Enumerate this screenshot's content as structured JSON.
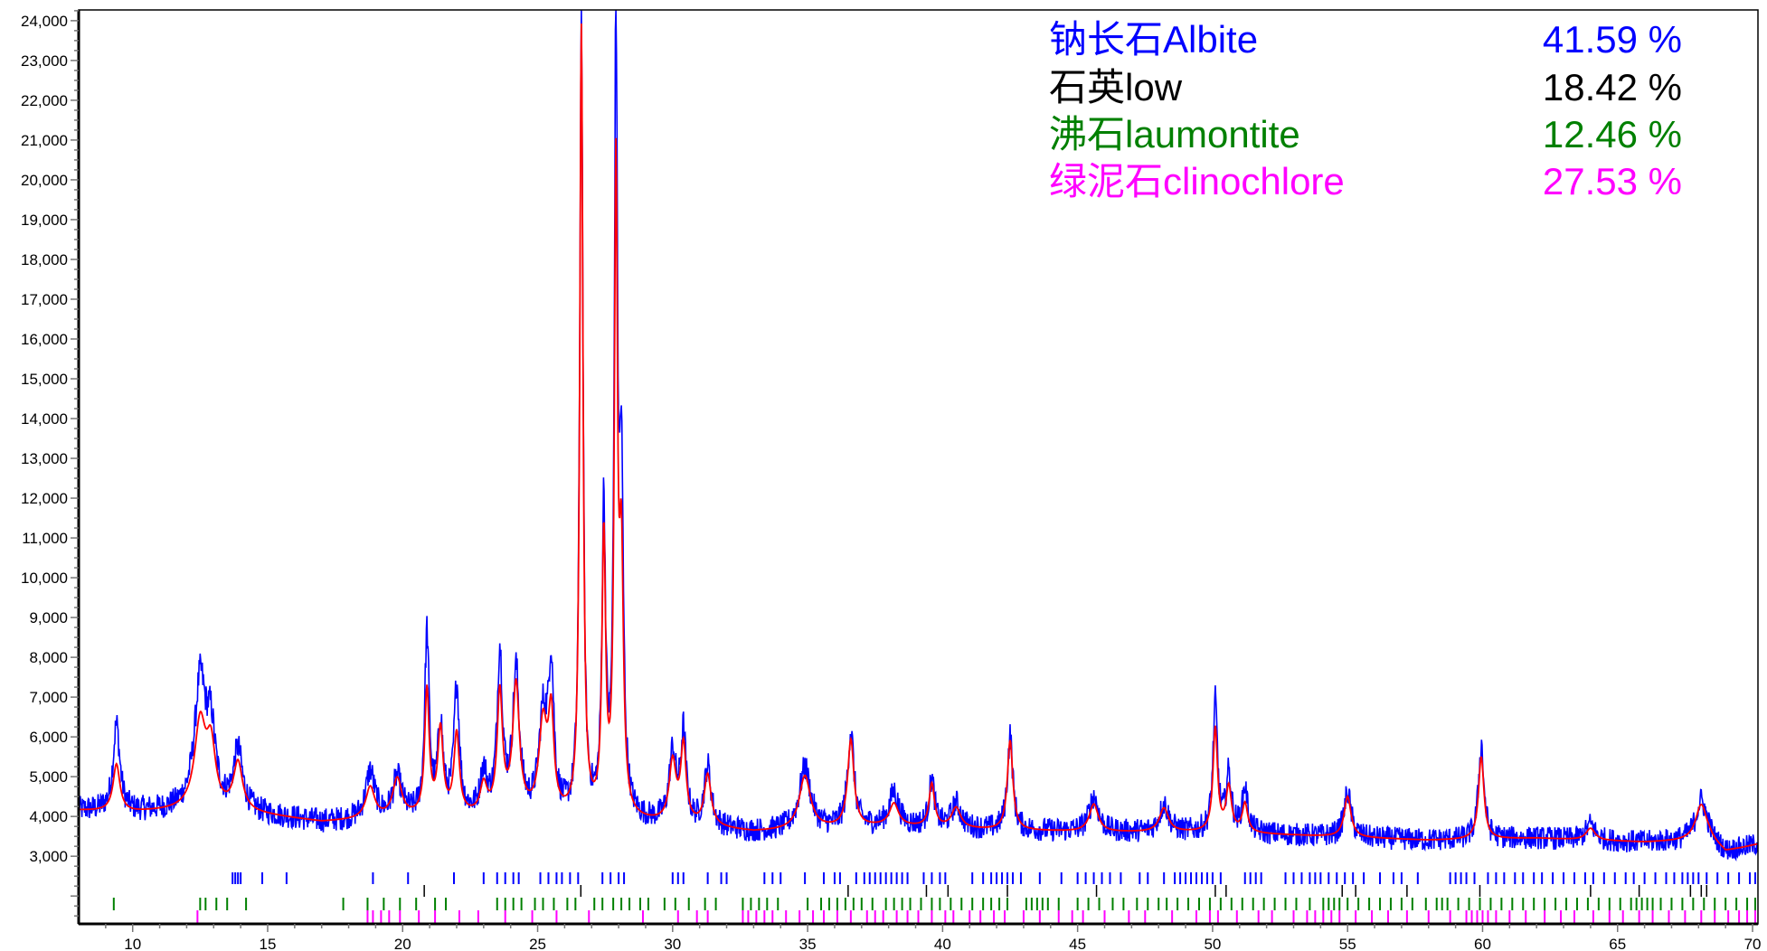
{
  "chart_data": {
    "type": "line",
    "title": "",
    "xlabel": "",
    "ylabel": "",
    "xlim": [
      8.0,
      70.2
    ],
    "ylim": [
      1300,
      24270
    ],
    "grid": false,
    "legend_placement": "top-right",
    "x_ticks": [
      10,
      15,
      20,
      25,
      30,
      35,
      40,
      45,
      50,
      55,
      60,
      65,
      70
    ],
    "y_ticks": [
      3000,
      4000,
      5000,
      6000,
      7000,
      8000,
      9000,
      10000,
      11000,
      12000,
      13000,
      14000,
      15000,
      16000,
      17000,
      18000,
      19000,
      20000,
      21000,
      22000,
      23000,
      24000
    ],
    "y_tick_labels": [
      "3,000",
      "4,000",
      "5,000",
      "6,000",
      "7,000",
      "8,000",
      "9,000",
      "10,000",
      "11,000",
      "12,000",
      "13,000",
      "14,000",
      "15,000",
      "16,000",
      "17,000",
      "18,000",
      "19,000",
      "20,000",
      "21,000",
      "22,000",
      "23,000",
      "24,000"
    ],
    "series": [
      {
        "role": "observed",
        "color": "#0000ff"
      },
      {
        "role": "calculated",
        "color": "#ff0000"
      }
    ],
    "background": [
      [
        8.0,
        4150
      ],
      [
        10,
        4100
      ],
      [
        12,
        4150
      ],
      [
        14,
        4100
      ],
      [
        17,
        3850
      ],
      [
        20,
        3950
      ],
      [
        24,
        4000
      ],
      [
        30,
        3800
      ],
      [
        33,
        3600
      ],
      [
        38,
        3750
      ],
      [
        42,
        3650
      ],
      [
        46,
        3600
      ],
      [
        50,
        3600
      ],
      [
        54,
        3500
      ],
      [
        58,
        3400
      ],
      [
        62,
        3450
      ],
      [
        66,
        3350
      ],
      [
        68.4,
        3400
      ],
      [
        69,
        3100
      ],
      [
        70.2,
        3300
      ]
    ],
    "peaks": [
      {
        "x": 9.4,
        "obs": 6300,
        "calc": 5300,
        "w": 0.15
      },
      {
        "x": 12.5,
        "obs": 7300,
        "calc": 6300,
        "w": 0.25
      },
      {
        "x": 12.9,
        "obs": 5900,
        "calc": 5600,
        "w": 0.2
      },
      {
        "x": 13.9,
        "obs": 5600,
        "calc": 5300,
        "w": 0.2
      },
      {
        "x": 18.8,
        "obs": 5100,
        "calc": 4700,
        "w": 0.2
      },
      {
        "x": 19.8,
        "obs": 4900,
        "calc": 4900,
        "w": 0.2
      },
      {
        "x": 20.9,
        "obs": 8500,
        "calc": 7100,
        "w": 0.1
      },
      {
        "x": 21.4,
        "obs": 6200,
        "calc": 6100,
        "w": 0.12
      },
      {
        "x": 22.0,
        "obs": 7200,
        "calc": 6000,
        "w": 0.12
      },
      {
        "x": 23.0,
        "obs": 5000,
        "calc": 4700,
        "w": 0.15
      },
      {
        "x": 23.6,
        "obs": 8000,
        "calc": 7000,
        "w": 0.12
      },
      {
        "x": 24.2,
        "obs": 7500,
        "calc": 7200,
        "w": 0.15
      },
      {
        "x": 25.2,
        "obs": 6300,
        "calc": 6200,
        "w": 0.18
      },
      {
        "x": 25.5,
        "obs": 7500,
        "calc": 6300,
        "w": 0.12
      },
      {
        "x": 26.62,
        "obs": 24300,
        "calc": 23700,
        "w": 0.07
      },
      {
        "x": 27.45,
        "obs": 11500,
        "calc": 10800,
        "w": 0.08
      },
      {
        "x": 27.9,
        "obs": 23100,
        "calc": 19700,
        "w": 0.07
      },
      {
        "x": 28.1,
        "obs": 12000,
        "calc": 10000,
        "w": 0.09
      },
      {
        "x": 30.0,
        "obs": 5500,
        "calc": 5300,
        "w": 0.15
      },
      {
        "x": 30.4,
        "obs": 6000,
        "calc": 5700,
        "w": 0.12
      },
      {
        "x": 31.3,
        "obs": 5200,
        "calc": 5000,
        "w": 0.15
      },
      {
        "x": 34.9,
        "obs": 5200,
        "calc": 5000,
        "w": 0.25
      },
      {
        "x": 36.6,
        "obs": 6100,
        "calc": 5900,
        "w": 0.14
      },
      {
        "x": 38.2,
        "obs": 4600,
        "calc": 4300,
        "w": 0.2
      },
      {
        "x": 39.6,
        "obs": 4900,
        "calc": 4800,
        "w": 0.12
      },
      {
        "x": 40.5,
        "obs": 4300,
        "calc": 4200,
        "w": 0.2
      },
      {
        "x": 42.5,
        "obs": 6000,
        "calc": 5900,
        "w": 0.12
      },
      {
        "x": 45.6,
        "obs": 4500,
        "calc": 4300,
        "w": 0.2
      },
      {
        "x": 48.2,
        "obs": 4300,
        "calc": 4200,
        "w": 0.2
      },
      {
        "x": 50.1,
        "obs": 6800,
        "calc": 6200,
        "w": 0.1
      },
      {
        "x": 50.6,
        "obs": 5000,
        "calc": 4700,
        "w": 0.12
      },
      {
        "x": 51.2,
        "obs": 4700,
        "calc": 4300,
        "w": 0.12
      },
      {
        "x": 55.0,
        "obs": 4600,
        "calc": 4500,
        "w": 0.15
      },
      {
        "x": 59.95,
        "obs": 5800,
        "calc": 5500,
        "w": 0.12
      },
      {
        "x": 64.0,
        "obs": 3800,
        "calc": 3700,
        "w": 0.2
      },
      {
        "x": 68.1,
        "obs": 4400,
        "calc": 4300,
        "w": 0.25
      }
    ],
    "phase_reflections": [
      {
        "phase": "钠长石Albite",
        "color": "#0000ff",
        "positions": [
          13.7,
          13.8,
          13.9,
          14.0,
          14.8,
          15.7,
          18.9,
          20.2,
          21.9,
          23.0,
          23.5,
          23.8,
          24.1,
          24.3,
          25.1,
          25.4,
          25.7,
          25.9,
          26.2,
          26.5,
          27.4,
          27.7,
          28.0,
          28.2,
          30.0,
          30.2,
          30.4,
          31.3,
          31.8,
          32.0,
          33.4,
          33.7,
          34.0,
          34.9,
          35.6,
          36.0,
          36.2,
          36.8,
          37.1,
          37.3,
          37.5,
          37.7,
          37.9,
          38.1,
          38.3,
          38.5,
          38.7,
          39.3,
          39.6,
          39.9,
          40.1,
          41.1,
          41.5,
          41.8,
          42.0,
          42.2,
          42.4,
          42.6,
          42.9,
          43.6,
          44.4,
          45.0,
          45.3,
          45.6,
          45.9,
          46.2,
          46.6,
          47.3,
          47.6,
          48.2,
          48.6,
          48.8,
          49.0,
          49.2,
          49.4,
          49.6,
          49.8,
          50.0,
          50.3,
          51.2,
          51.4,
          51.6,
          51.8,
          52.7,
          53.0,
          53.3,
          53.6,
          53.8,
          54.0,
          54.3,
          54.6,
          54.9,
          55.2,
          55.6,
          56.2,
          56.7,
          57.0,
          57.6,
          58.8,
          59.0,
          59.2,
          59.4,
          59.7,
          60.2,
          60.5,
          60.8,
          61.2,
          61.5,
          61.9,
          62.2,
          62.6,
          63.0,
          63.4,
          63.8,
          64.1,
          64.5,
          64.9,
          65.3,
          65.6,
          66.0,
          66.4,
          66.8,
          67.1,
          67.4,
          67.6,
          67.8,
          68.0,
          68.3,
          68.7,
          69.1,
          69.5,
          69.9,
          70.1
        ]
      },
      {
        "phase": "石英low",
        "color": "#000000",
        "positions": [
          20.8,
          26.6,
          36.5,
          39.4,
          40.2,
          42.4,
          45.7,
          50.1,
          50.5,
          54.8,
          55.3,
          57.2,
          59.9,
          64.0,
          65.8,
          67.7,
          68.1,
          68.3
        ]
      },
      {
        "phase": "沸石laumontite",
        "color": "#008000",
        "positions": [
          9.3,
          12.5,
          12.7,
          13.1,
          13.5,
          14.2,
          17.8,
          18.7,
          19.3,
          19.9,
          20.5,
          21.2,
          21.6,
          23.5,
          23.8,
          24.1,
          24.4,
          24.9,
          25.2,
          25.6,
          26.1,
          26.4,
          27.1,
          27.4,
          27.8,
          28.1,
          28.4,
          28.8,
          29.1,
          29.7,
          30.1,
          30.6,
          31.2,
          31.6,
          32.6,
          32.9,
          33.2,
          33.5,
          33.9,
          35.0,
          35.5,
          35.8,
          36.1,
          36.4,
          36.7,
          37.0,
          37.4,
          37.9,
          38.2,
          38.5,
          38.8,
          39.2,
          39.6,
          39.9,
          40.3,
          40.7,
          41.1,
          41.5,
          41.8,
          42.1,
          42.4,
          43.1,
          43.3,
          43.5,
          43.7,
          43.9,
          44.3,
          45.0,
          45.4,
          45.8,
          46.3,
          46.7,
          47.2,
          47.6,
          48.0,
          48.3,
          48.7,
          49.1,
          49.5,
          49.9,
          50.3,
          50.7,
          51.1,
          51.5,
          51.9,
          52.3,
          52.7,
          53.1,
          53.6,
          54.1,
          54.3,
          54.5,
          54.7,
          55.0,
          55.4,
          55.8,
          56.2,
          56.6,
          57.0,
          57.4,
          57.9,
          58.3,
          58.5,
          58.7,
          59.1,
          59.5,
          59.9,
          60.3,
          60.7,
          61.1,
          61.5,
          61.9,
          62.3,
          62.7,
          63.1,
          63.5,
          63.9,
          64.3,
          64.7,
          65.1,
          65.5,
          65.7,
          65.9,
          66.1,
          66.3,
          66.6,
          67.0,
          67.4,
          67.8,
          68.2,
          68.6,
          69.0,
          69.4,
          69.8,
          70.1
        ]
      },
      {
        "phase": "绿泥石clinochlore",
        "color": "#ff00ff",
        "positions": [
          12.4,
          18.7,
          18.9,
          19.2,
          19.5,
          19.9,
          20.6,
          21.2,
          22.1,
          22.8,
          23.8,
          24.8,
          25.7,
          26.9,
          28.9,
          30.2,
          30.9,
          31.3,
          32.6,
          32.8,
          33.1,
          33.4,
          33.7,
          34.2,
          34.7,
          35.2,
          35.6,
          36.1,
          36.6,
          37.2,
          37.5,
          37.8,
          38.3,
          38.7,
          39.1,
          39.6,
          40.1,
          40.4,
          41.0,
          41.4,
          41.9,
          42.3,
          43.0,
          43.6,
          44.3,
          44.8,
          45.2,
          46.0,
          46.9,
          47.5,
          48.5,
          49.4,
          49.9,
          50.2,
          50.9,
          51.7,
          52.2,
          53.0,
          53.5,
          53.8,
          54.1,
          54.4,
          54.7,
          55.3,
          55.9,
          56.5,
          57.2,
          58.0,
          58.8,
          59.4,
          59.6,
          59.8,
          60.0,
          60.2,
          60.5,
          61.0,
          61.6,
          62.3,
          62.9,
          63.4,
          64.1,
          64.7,
          65.2,
          65.8,
          66.3,
          66.9,
          67.5,
          68.1,
          68.6,
          69.1,
          69.5,
          69.8,
          70.1
        ]
      }
    ],
    "legend": [
      {
        "label": "钠长石Albite",
        "value": "41.59 %",
        "color": "#0000ff"
      },
      {
        "label": "石英low",
        "value": "18.42 %",
        "color": "#000000"
      },
      {
        "label": "沸石laumontite",
        "value": "12.46 %",
        "color": "#008000"
      },
      {
        "label": "绿泥石clinochlore",
        "value": "27.53 %",
        "color": "#ff00ff"
      }
    ]
  }
}
